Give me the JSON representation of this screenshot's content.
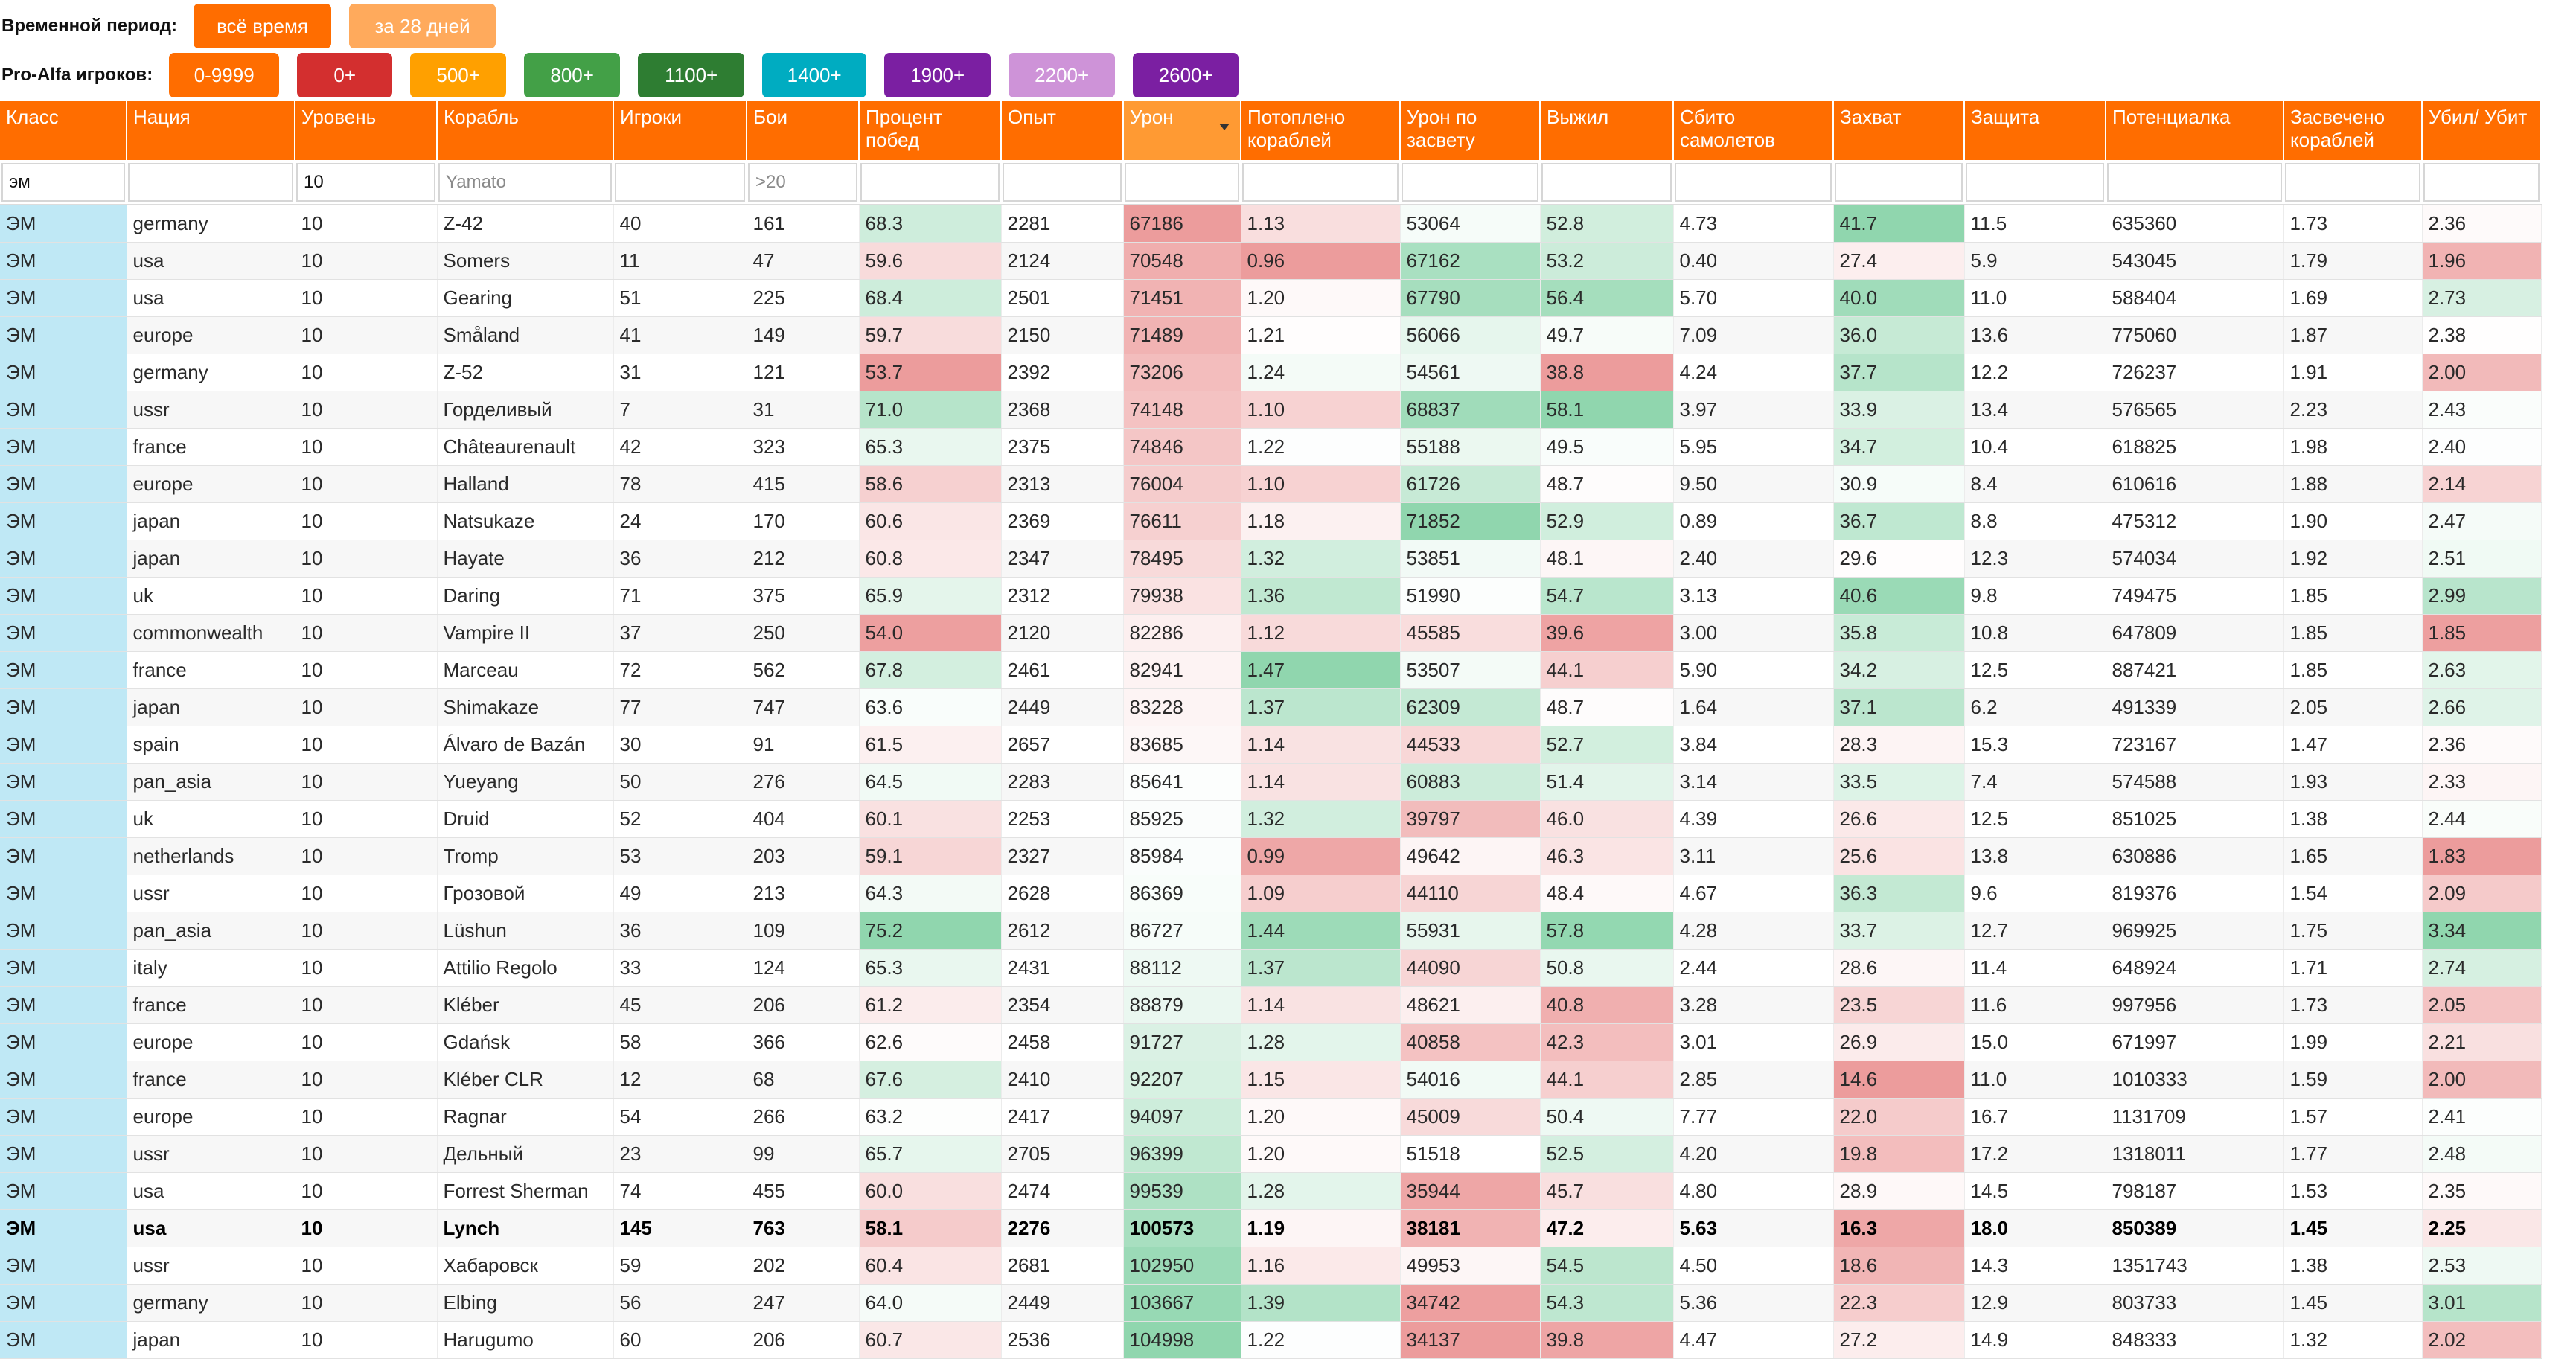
{
  "period": {
    "label": "Временной период:",
    "buttons": [
      {
        "label": "всё время",
        "color": "#ff6d00",
        "text_color": "#ffffff"
      },
      {
        "label": "за 28 дней",
        "color": "#ffaa5c",
        "text_color": "#ffffff"
      }
    ]
  },
  "proalfa": {
    "label": "Pro-Alfa игроков:",
    "buttons": [
      {
        "label": "0-9999",
        "color": "#ff6d00"
      },
      {
        "label": "0+",
        "color": "#d32f2f"
      },
      {
        "label": "500+",
        "color": "#ffa000"
      },
      {
        "label": "800+",
        "color": "#43a047"
      },
      {
        "label": "1100+",
        "color": "#2e7d32"
      },
      {
        "label": "1400+",
        "color": "#00acc1"
      },
      {
        "label": "1900+",
        "color": "#7b1fa2"
      },
      {
        "label": "2200+",
        "color": "#ce93d8"
      },
      {
        "label": "2600+",
        "color": "#7b1fa2"
      }
    ]
  },
  "columns": [
    {
      "key": "cls",
      "label": "Класс"
    },
    {
      "key": "nation",
      "label": "Нация"
    },
    {
      "key": "tier",
      "label": "Уровень"
    },
    {
      "key": "ship",
      "label": "Корабль"
    },
    {
      "key": "players",
      "label": "Игроки"
    },
    {
      "key": "battles",
      "label": "Бои"
    },
    {
      "key": "wr",
      "label": "Процент побед"
    },
    {
      "key": "xp",
      "label": "Опыт"
    },
    {
      "key": "dmg",
      "label": "Урон",
      "sorted": true
    },
    {
      "key": "kills",
      "label": "Потоплено кораблей"
    },
    {
      "key": "spot",
      "label": "Урон по засвету"
    },
    {
      "key": "surv",
      "label": "Выжил"
    },
    {
      "key": "planes",
      "label": "Сбито самолетов"
    },
    {
      "key": "cap",
      "label": "Захват"
    },
    {
      "key": "def",
      "label": "Защита"
    },
    {
      "key": "pot",
      "label": "Потенциалка"
    },
    {
      "key": "spotted",
      "label": "Засвечено кораблей"
    },
    {
      "key": "kd",
      "label": "Убил/ Убит"
    }
  ],
  "filters": {
    "cls": {
      "value": "эм",
      "placeholder": ""
    },
    "nation": {
      "value": "",
      "placeholder": ""
    },
    "tier": {
      "value": "10",
      "placeholder": ""
    },
    "ship": {
      "value": "",
      "placeholder": "Yamato"
    },
    "players": {
      "value": "",
      "placeholder": ""
    },
    "battles": {
      "value": "",
      "placeholder": ">20"
    },
    "wr": {
      "value": "",
      "placeholder": ""
    },
    "xp": {
      "value": "",
      "placeholder": ""
    },
    "dmg": {
      "value": "",
      "placeholder": ""
    },
    "kills": {
      "value": "",
      "placeholder": ""
    },
    "spot": {
      "value": "",
      "placeholder": ""
    },
    "surv": {
      "value": "",
      "placeholder": ""
    },
    "planes": {
      "value": "",
      "placeholder": ""
    },
    "cap": {
      "value": "",
      "placeholder": ""
    },
    "def": {
      "value": "",
      "placeholder": ""
    },
    "pot": {
      "value": "",
      "placeholder": ""
    },
    "spotted": {
      "value": "",
      "placeholder": ""
    },
    "kd": {
      "value": "",
      "placeholder": ""
    }
  },
  "heat_colors": {
    "good": "#7ccfa0",
    "bad": "#e98a8a",
    "class_cell": "#bfe8f5"
  },
  "rows": [
    {
      "cls": "ЭМ",
      "nation": "germany",
      "tier": "10",
      "ship": "Z-42",
      "players": "40",
      "battles": "161",
      "wr": "68.3",
      "xp": "2281",
      "dmg": "67186",
      "kills": "1.13",
      "spot": "53064",
      "surv": "52.8",
      "planes": "4.73",
      "cap": "41.7",
      "def": "11.5",
      "pot": "635360",
      "spotted": "1.73",
      "kd": "2.36"
    },
    {
      "cls": "ЭМ",
      "nation": "usa",
      "tier": "10",
      "ship": "Somers",
      "players": "11",
      "battles": "47",
      "wr": "59.6",
      "xp": "2124",
      "dmg": "70548",
      "kills": "0.96",
      "spot": "67162",
      "surv": "53.2",
      "planes": "0.40",
      "cap": "27.4",
      "def": "5.9",
      "pot": "543045",
      "spotted": "1.79",
      "kd": "1.96"
    },
    {
      "cls": "ЭМ",
      "nation": "usa",
      "tier": "10",
      "ship": "Gearing",
      "players": "51",
      "battles": "225",
      "wr": "68.4",
      "xp": "2501",
      "dmg": "71451",
      "kills": "1.20",
      "spot": "67790",
      "surv": "56.4",
      "planes": "5.70",
      "cap": "40.0",
      "def": "11.0",
      "pot": "588404",
      "spotted": "1.69",
      "kd": "2.73"
    },
    {
      "cls": "ЭМ",
      "nation": "europe",
      "tier": "10",
      "ship": "Småland",
      "players": "41",
      "battles": "149",
      "wr": "59.7",
      "xp": "2150",
      "dmg": "71489",
      "kills": "1.21",
      "spot": "56066",
      "surv": "49.7",
      "planes": "7.09",
      "cap": "36.0",
      "def": "13.6",
      "pot": "775060",
      "spotted": "1.87",
      "kd": "2.38"
    },
    {
      "cls": "ЭМ",
      "nation": "germany",
      "tier": "10",
      "ship": "Z-52",
      "players": "31",
      "battles": "121",
      "wr": "53.7",
      "xp": "2392",
      "dmg": "73206",
      "kills": "1.24",
      "spot": "54561",
      "surv": "38.8",
      "planes": "4.24",
      "cap": "37.7",
      "def": "12.2",
      "pot": "726237",
      "spotted": "1.91",
      "kd": "2.00"
    },
    {
      "cls": "ЭМ",
      "nation": "ussr",
      "tier": "10",
      "ship": "Горделивый",
      "players": "7",
      "battles": "31",
      "wr": "71.0",
      "xp": "2368",
      "dmg": "74148",
      "kills": "1.10",
      "spot": "68837",
      "surv": "58.1",
      "planes": "3.97",
      "cap": "33.9",
      "def": "13.4",
      "pot": "576565",
      "spotted": "2.23",
      "kd": "2.43"
    },
    {
      "cls": "ЭМ",
      "nation": "france",
      "tier": "10",
      "ship": "Châteaurenault",
      "players": "42",
      "battles": "323",
      "wr": "65.3",
      "xp": "2375",
      "dmg": "74846",
      "kills": "1.22",
      "spot": "55188",
      "surv": "49.5",
      "planes": "5.95",
      "cap": "34.7",
      "def": "10.4",
      "pot": "618825",
      "spotted": "1.98",
      "kd": "2.40"
    },
    {
      "cls": "ЭМ",
      "nation": "europe",
      "tier": "10",
      "ship": "Halland",
      "players": "78",
      "battles": "415",
      "wr": "58.6",
      "xp": "2313",
      "dmg": "76004",
      "kills": "1.10",
      "spot": "61726",
      "surv": "48.7",
      "planes": "9.50",
      "cap": "30.9",
      "def": "8.4",
      "pot": "610616",
      "spotted": "1.88",
      "kd": "2.14"
    },
    {
      "cls": "ЭМ",
      "nation": "japan",
      "tier": "10",
      "ship": "Natsukaze",
      "players": "24",
      "battles": "170",
      "wr": "60.6",
      "xp": "2369",
      "dmg": "76611",
      "kills": "1.18",
      "spot": "71852",
      "surv": "52.9",
      "planes": "0.89",
      "cap": "36.7",
      "def": "8.8",
      "pot": "475312",
      "spotted": "1.90",
      "kd": "2.47"
    },
    {
      "cls": "ЭМ",
      "nation": "japan",
      "tier": "10",
      "ship": "Hayate",
      "players": "36",
      "battles": "212",
      "wr": "60.8",
      "xp": "2347",
      "dmg": "78495",
      "kills": "1.32",
      "spot": "53851",
      "surv": "48.1",
      "planes": "2.40",
      "cap": "29.6",
      "def": "12.3",
      "pot": "574034",
      "spotted": "1.92",
      "kd": "2.51"
    },
    {
      "cls": "ЭМ",
      "nation": "uk",
      "tier": "10",
      "ship": "Daring",
      "players": "71",
      "battles": "375",
      "wr": "65.9",
      "xp": "2312",
      "dmg": "79938",
      "kills": "1.36",
      "spot": "51990",
      "surv": "54.7",
      "planes": "3.13",
      "cap": "40.6",
      "def": "9.8",
      "pot": "749475",
      "spotted": "1.85",
      "kd": "2.99"
    },
    {
      "cls": "ЭМ",
      "nation": "commonwealth",
      "tier": "10",
      "ship": "Vampire II",
      "players": "37",
      "battles": "250",
      "wr": "54.0",
      "xp": "2120",
      "dmg": "82286",
      "kills": "1.12",
      "spot": "45585",
      "surv": "39.6",
      "planes": "3.00",
      "cap": "35.8",
      "def": "10.8",
      "pot": "647809",
      "spotted": "1.85",
      "kd": "1.85"
    },
    {
      "cls": "ЭМ",
      "nation": "france",
      "tier": "10",
      "ship": "Marceau",
      "players": "72",
      "battles": "562",
      "wr": "67.8",
      "xp": "2461",
      "dmg": "82941",
      "kills": "1.47",
      "spot": "53507",
      "surv": "44.1",
      "planes": "5.90",
      "cap": "34.2",
      "def": "12.5",
      "pot": "887421",
      "spotted": "1.85",
      "kd": "2.63"
    },
    {
      "cls": "ЭМ",
      "nation": "japan",
      "tier": "10",
      "ship": "Shimakaze",
      "players": "77",
      "battles": "747",
      "wr": "63.6",
      "xp": "2449",
      "dmg": "83228",
      "kills": "1.37",
      "spot": "62309",
      "surv": "48.7",
      "planes": "1.64",
      "cap": "37.1",
      "def": "6.2",
      "pot": "491339",
      "spotted": "2.05",
      "kd": "2.66"
    },
    {
      "cls": "ЭМ",
      "nation": "spain",
      "tier": "10",
      "ship": "Álvaro de Bazán",
      "players": "30",
      "battles": "91",
      "wr": "61.5",
      "xp": "2657",
      "dmg": "83685",
      "kills": "1.14",
      "spot": "44533",
      "surv": "52.7",
      "planes": "3.84",
      "cap": "28.3",
      "def": "15.3",
      "pot": "723167",
      "spotted": "1.47",
      "kd": "2.36"
    },
    {
      "cls": "ЭМ",
      "nation": "pan_asia",
      "tier": "10",
      "ship": "Yueyang",
      "players": "50",
      "battles": "276",
      "wr": "64.5",
      "xp": "2283",
      "dmg": "85641",
      "kills": "1.14",
      "spot": "60883",
      "surv": "51.4",
      "planes": "3.14",
      "cap": "33.5",
      "def": "7.4",
      "pot": "574588",
      "spotted": "1.93",
      "kd": "2.33"
    },
    {
      "cls": "ЭМ",
      "nation": "uk",
      "tier": "10",
      "ship": "Druid",
      "players": "52",
      "battles": "404",
      "wr": "60.1",
      "xp": "2253",
      "dmg": "85925",
      "kills": "1.32",
      "spot": "39797",
      "surv": "46.0",
      "planes": "4.39",
      "cap": "26.6",
      "def": "12.5",
      "pot": "851025",
      "spotted": "1.38",
      "kd": "2.44"
    },
    {
      "cls": "ЭМ",
      "nation": "netherlands",
      "tier": "10",
      "ship": "Tromp",
      "players": "53",
      "battles": "203",
      "wr": "59.1",
      "xp": "2327",
      "dmg": "85984",
      "kills": "0.99",
      "spot": "49642",
      "surv": "46.3",
      "planes": "3.11",
      "cap": "25.6",
      "def": "13.8",
      "pot": "630886",
      "spotted": "1.65",
      "kd": "1.83"
    },
    {
      "cls": "ЭМ",
      "nation": "ussr",
      "tier": "10",
      "ship": "Грозовой",
      "players": "49",
      "battles": "213",
      "wr": "64.3",
      "xp": "2628",
      "dmg": "86369",
      "kills": "1.09",
      "spot": "44110",
      "surv": "48.4",
      "planes": "4.67",
      "cap": "36.3",
      "def": "9.6",
      "pot": "819376",
      "spotted": "1.54",
      "kd": "2.09"
    },
    {
      "cls": "ЭМ",
      "nation": "pan_asia",
      "tier": "10",
      "ship": "Lüshun",
      "players": "36",
      "battles": "109",
      "wr": "75.2",
      "xp": "2612",
      "dmg": "86727",
      "kills": "1.44",
      "spot": "55931",
      "surv": "57.8",
      "planes": "4.28",
      "cap": "33.7",
      "def": "12.7",
      "pot": "969925",
      "spotted": "1.75",
      "kd": "3.34"
    },
    {
      "cls": "ЭМ",
      "nation": "italy",
      "tier": "10",
      "ship": "Attilio Regolo",
      "players": "33",
      "battles": "124",
      "wr": "65.3",
      "xp": "2431",
      "dmg": "88112",
      "kills": "1.37",
      "spot": "44090",
      "surv": "50.8",
      "planes": "2.44",
      "cap": "28.6",
      "def": "11.4",
      "pot": "648924",
      "spotted": "1.71",
      "kd": "2.74"
    },
    {
      "cls": "ЭМ",
      "nation": "france",
      "tier": "10",
      "ship": "Kléber",
      "players": "45",
      "battles": "206",
      "wr": "61.2",
      "xp": "2354",
      "dmg": "88879",
      "kills": "1.14",
      "spot": "48621",
      "surv": "40.8",
      "planes": "3.28",
      "cap": "23.5",
      "def": "11.6",
      "pot": "997956",
      "spotted": "1.73",
      "kd": "2.05"
    },
    {
      "cls": "ЭМ",
      "nation": "europe",
      "tier": "10",
      "ship": "Gdańsk",
      "players": "58",
      "battles": "366",
      "wr": "62.6",
      "xp": "2458",
      "dmg": "91727",
      "kills": "1.28",
      "spot": "40858",
      "surv": "42.3",
      "planes": "3.01",
      "cap": "26.9",
      "def": "15.0",
      "pot": "671997",
      "spotted": "1.99",
      "kd": "2.21"
    },
    {
      "cls": "ЭМ",
      "nation": "france",
      "tier": "10",
      "ship": "Kléber CLR",
      "players": "12",
      "battles": "68",
      "wr": "67.6",
      "xp": "2410",
      "dmg": "92207",
      "kills": "1.15",
      "spot": "54016",
      "surv": "44.1",
      "planes": "2.85",
      "cap": "14.6",
      "def": "11.0",
      "pot": "1010333",
      "spotted": "1.59",
      "kd": "2.00"
    },
    {
      "cls": "ЭМ",
      "nation": "europe",
      "tier": "10",
      "ship": "Ragnar",
      "players": "54",
      "battles": "266",
      "wr": "63.2",
      "xp": "2417",
      "dmg": "94097",
      "kills": "1.20",
      "spot": "45009",
      "surv": "50.4",
      "planes": "7.77",
      "cap": "22.0",
      "def": "16.7",
      "pot": "1131709",
      "spotted": "1.57",
      "kd": "2.41"
    },
    {
      "cls": "ЭМ",
      "nation": "ussr",
      "tier": "10",
      "ship": "Дельный",
      "players": "23",
      "battles": "99",
      "wr": "65.7",
      "xp": "2705",
      "dmg": "96399",
      "kills": "1.20",
      "spot": "51518",
      "surv": "52.5",
      "planes": "4.20",
      "cap": "19.8",
      "def": "17.2",
      "pot": "1318011",
      "spotted": "1.77",
      "kd": "2.48"
    },
    {
      "cls": "ЭМ",
      "nation": "usa",
      "tier": "10",
      "ship": "Forrest Sherman",
      "players": "74",
      "battles": "455",
      "wr": "60.0",
      "xp": "2474",
      "dmg": "99539",
      "kills": "1.28",
      "spot": "35944",
      "surv": "45.7",
      "planes": "4.80",
      "cap": "28.9",
      "def": "14.5",
      "pot": "798187",
      "spotted": "1.53",
      "kd": "2.35"
    },
    {
      "cls": "ЭМ",
      "nation": "usa",
      "tier": "10",
      "ship": "Lynch",
      "players": "145",
      "battles": "763",
      "wr": "58.1",
      "xp": "2276",
      "dmg": "100573",
      "kills": "1.19",
      "spot": "38181",
      "surv": "47.2",
      "planes": "5.63",
      "cap": "16.3",
      "def": "18.0",
      "pot": "850389",
      "spotted": "1.45",
      "kd": "2.25",
      "bold": true
    },
    {
      "cls": "ЭМ",
      "nation": "ussr",
      "tier": "10",
      "ship": "Хабаровск",
      "players": "59",
      "battles": "202",
      "wr": "60.4",
      "xp": "2681",
      "dmg": "102950",
      "kills": "1.16",
      "spot": "49953",
      "surv": "54.5",
      "planes": "4.50",
      "cap": "18.6",
      "def": "14.3",
      "pot": "1351743",
      "spotted": "1.38",
      "kd": "2.53"
    },
    {
      "cls": "ЭМ",
      "nation": "germany",
      "tier": "10",
      "ship": "Elbing",
      "players": "56",
      "battles": "247",
      "wr": "64.0",
      "xp": "2449",
      "dmg": "103667",
      "kills": "1.39",
      "spot": "34742",
      "surv": "54.3",
      "planes": "5.36",
      "cap": "22.3",
      "def": "12.9",
      "pot": "803733",
      "spotted": "1.45",
      "kd": "3.01"
    },
    {
      "cls": "ЭМ",
      "nation": "japan",
      "tier": "10",
      "ship": "Harugumo",
      "players": "60",
      "battles": "206",
      "wr": "60.7",
      "xp": "2536",
      "dmg": "104998",
      "kills": "1.22",
      "spot": "34137",
      "surv": "39.8",
      "planes": "4.47",
      "cap": "27.2",
      "def": "14.9",
      "pot": "848333",
      "spotted": "1.32",
      "kd": "2.02"
    }
  ]
}
